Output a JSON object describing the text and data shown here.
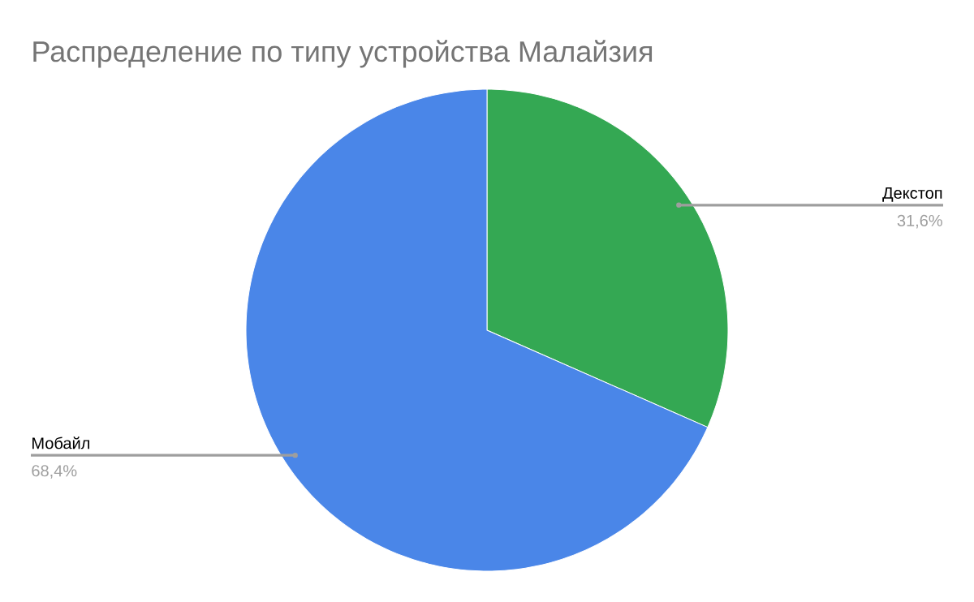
{
  "chart_data": {
    "type": "pie",
    "title": "Распределение по типу устройства Малайзия",
    "categories": [
      "Декстоп",
      "Мобайл"
    ],
    "values": [
      31.6,
      68.4
    ],
    "colors": [
      "#34a853",
      "#4a86e8"
    ],
    "value_labels": [
      "31,6%",
      "68,4%"
    ]
  }
}
